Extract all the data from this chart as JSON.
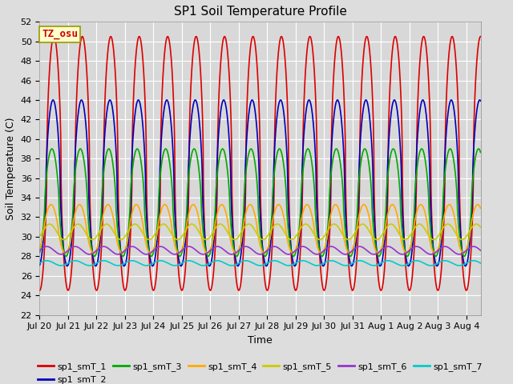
{
  "title": "SP1 Soil Temperature Profile",
  "xlabel": "Time",
  "ylabel": "Soil Temperature (C)",
  "ylim": [
    22,
    52
  ],
  "xlim_days": [
    0,
    15.5
  ],
  "x_tick_labels": [
    "Jul 20",
    "Jul 21",
    "Jul 22",
    "Jul 23",
    "Jul 24",
    "Jul 25",
    "Jul 26",
    "Jul 27",
    "Jul 28",
    "Jul 29",
    "Jul 30",
    "Jul 31",
    "Aug 1",
    "Aug 2",
    "Aug 3",
    "Aug 4"
  ],
  "annotation_text": "TZ_osu",
  "annotation_color": "#cc0000",
  "annotation_bg": "#ffffcc",
  "annotation_border": "#999900",
  "series": [
    {
      "label": "sp1_smT_1",
      "color": "#dd0000",
      "amplitude": 13.0,
      "mean": 37.5,
      "phase_shift": -0.25,
      "sharpness": 0.55,
      "linewidth": 1.2
    },
    {
      "label": "sp1_smT_2",
      "color": "#0000bb",
      "amplitude": 8.5,
      "mean": 35.5,
      "phase_shift": -0.22,
      "sharpness": 0.62,
      "linewidth": 1.2
    },
    {
      "label": "sp1_smT_3",
      "color": "#00aa00",
      "amplitude": 5.5,
      "mean": 33.5,
      "phase_shift": -0.18,
      "sharpness": 0.68,
      "linewidth": 1.2
    },
    {
      "label": "sp1_smT_4",
      "color": "#ffaa00",
      "amplitude": 2.5,
      "mean": 30.8,
      "phase_shift": -0.15,
      "sharpness": 0.8,
      "linewidth": 1.2
    },
    {
      "label": "sp1_smT_5",
      "color": "#cccc00",
      "amplitude": 0.8,
      "mean": 30.5,
      "phase_shift": -0.1,
      "sharpness": 1.0,
      "linewidth": 1.2
    },
    {
      "label": "sp1_smT_6",
      "color": "#9933cc",
      "amplitude": 0.4,
      "mean": 28.6,
      "phase_shift": 0.0,
      "sharpness": 1.0,
      "linewidth": 1.2
    },
    {
      "label": "sp1_smT_7",
      "color": "#00cccc",
      "amplitude": 0.25,
      "mean": 27.3,
      "phase_shift": 0.0,
      "sharpness": 1.0,
      "linewidth": 1.2
    }
  ],
  "fig_bg_color": "#dddddd",
  "plot_bg_color": "#d8d8d8",
  "grid_color": "#ffffff",
  "title_fontsize": 11,
  "label_fontsize": 9,
  "tick_fontsize": 8,
  "legend_fontsize": 8
}
